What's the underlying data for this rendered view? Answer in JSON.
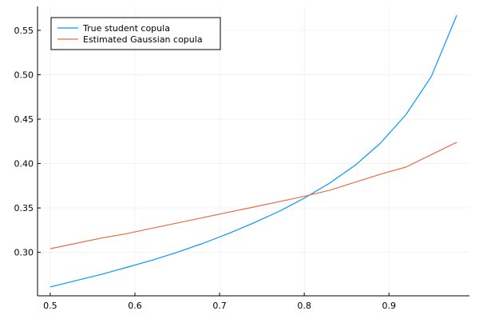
{
  "chart_data": {
    "type": "line",
    "title": "",
    "xlabel": "",
    "ylabel": "",
    "xlim": [
      0.485,
      0.995
    ],
    "ylim": [
      0.251,
      0.577
    ],
    "xticks": [
      0.5,
      0.6,
      0.7,
      0.8,
      0.9
    ],
    "xtick_labels": [
      "0.5",
      "0.6",
      "0.7",
      "0.8",
      "0.9"
    ],
    "yticks": [
      0.3,
      0.35,
      0.4,
      0.45,
      0.5,
      0.55
    ],
    "ytick_labels": [
      "0.30",
      "0.35",
      "0.40",
      "0.45",
      "0.50",
      "0.55"
    ],
    "grid": true,
    "legend_position": "top-left",
    "series": [
      {
        "name": "True student copula",
        "color": "#009AFA",
        "x": [
          0.5,
          0.53,
          0.56,
          0.59,
          0.62,
          0.65,
          0.68,
          0.71,
          0.74,
          0.77,
          0.8,
          0.83,
          0.86,
          0.89,
          0.92,
          0.95,
          0.98
        ],
        "y": [
          0.261,
          0.268,
          0.275,
          0.283,
          0.291,
          0.3,
          0.31,
          0.321,
          0.333,
          0.346,
          0.361,
          0.378,
          0.398,
          0.423,
          0.455,
          0.498,
          0.567
        ]
      },
      {
        "name": "Estimated Gaussian copula",
        "color": "#E36F47",
        "x": [
          0.5,
          0.53,
          0.56,
          0.59,
          0.62,
          0.65,
          0.68,
          0.71,
          0.74,
          0.77,
          0.8,
          0.83,
          0.86,
          0.89,
          0.92,
          0.95,
          0.98
        ],
        "y": [
          0.304,
          0.31,
          0.316,
          0.321,
          0.327,
          0.333,
          0.339,
          0.345,
          0.351,
          0.357,
          0.363,
          0.37,
          0.379,
          0.388,
          0.396,
          0.41,
          0.424
        ]
      }
    ]
  }
}
